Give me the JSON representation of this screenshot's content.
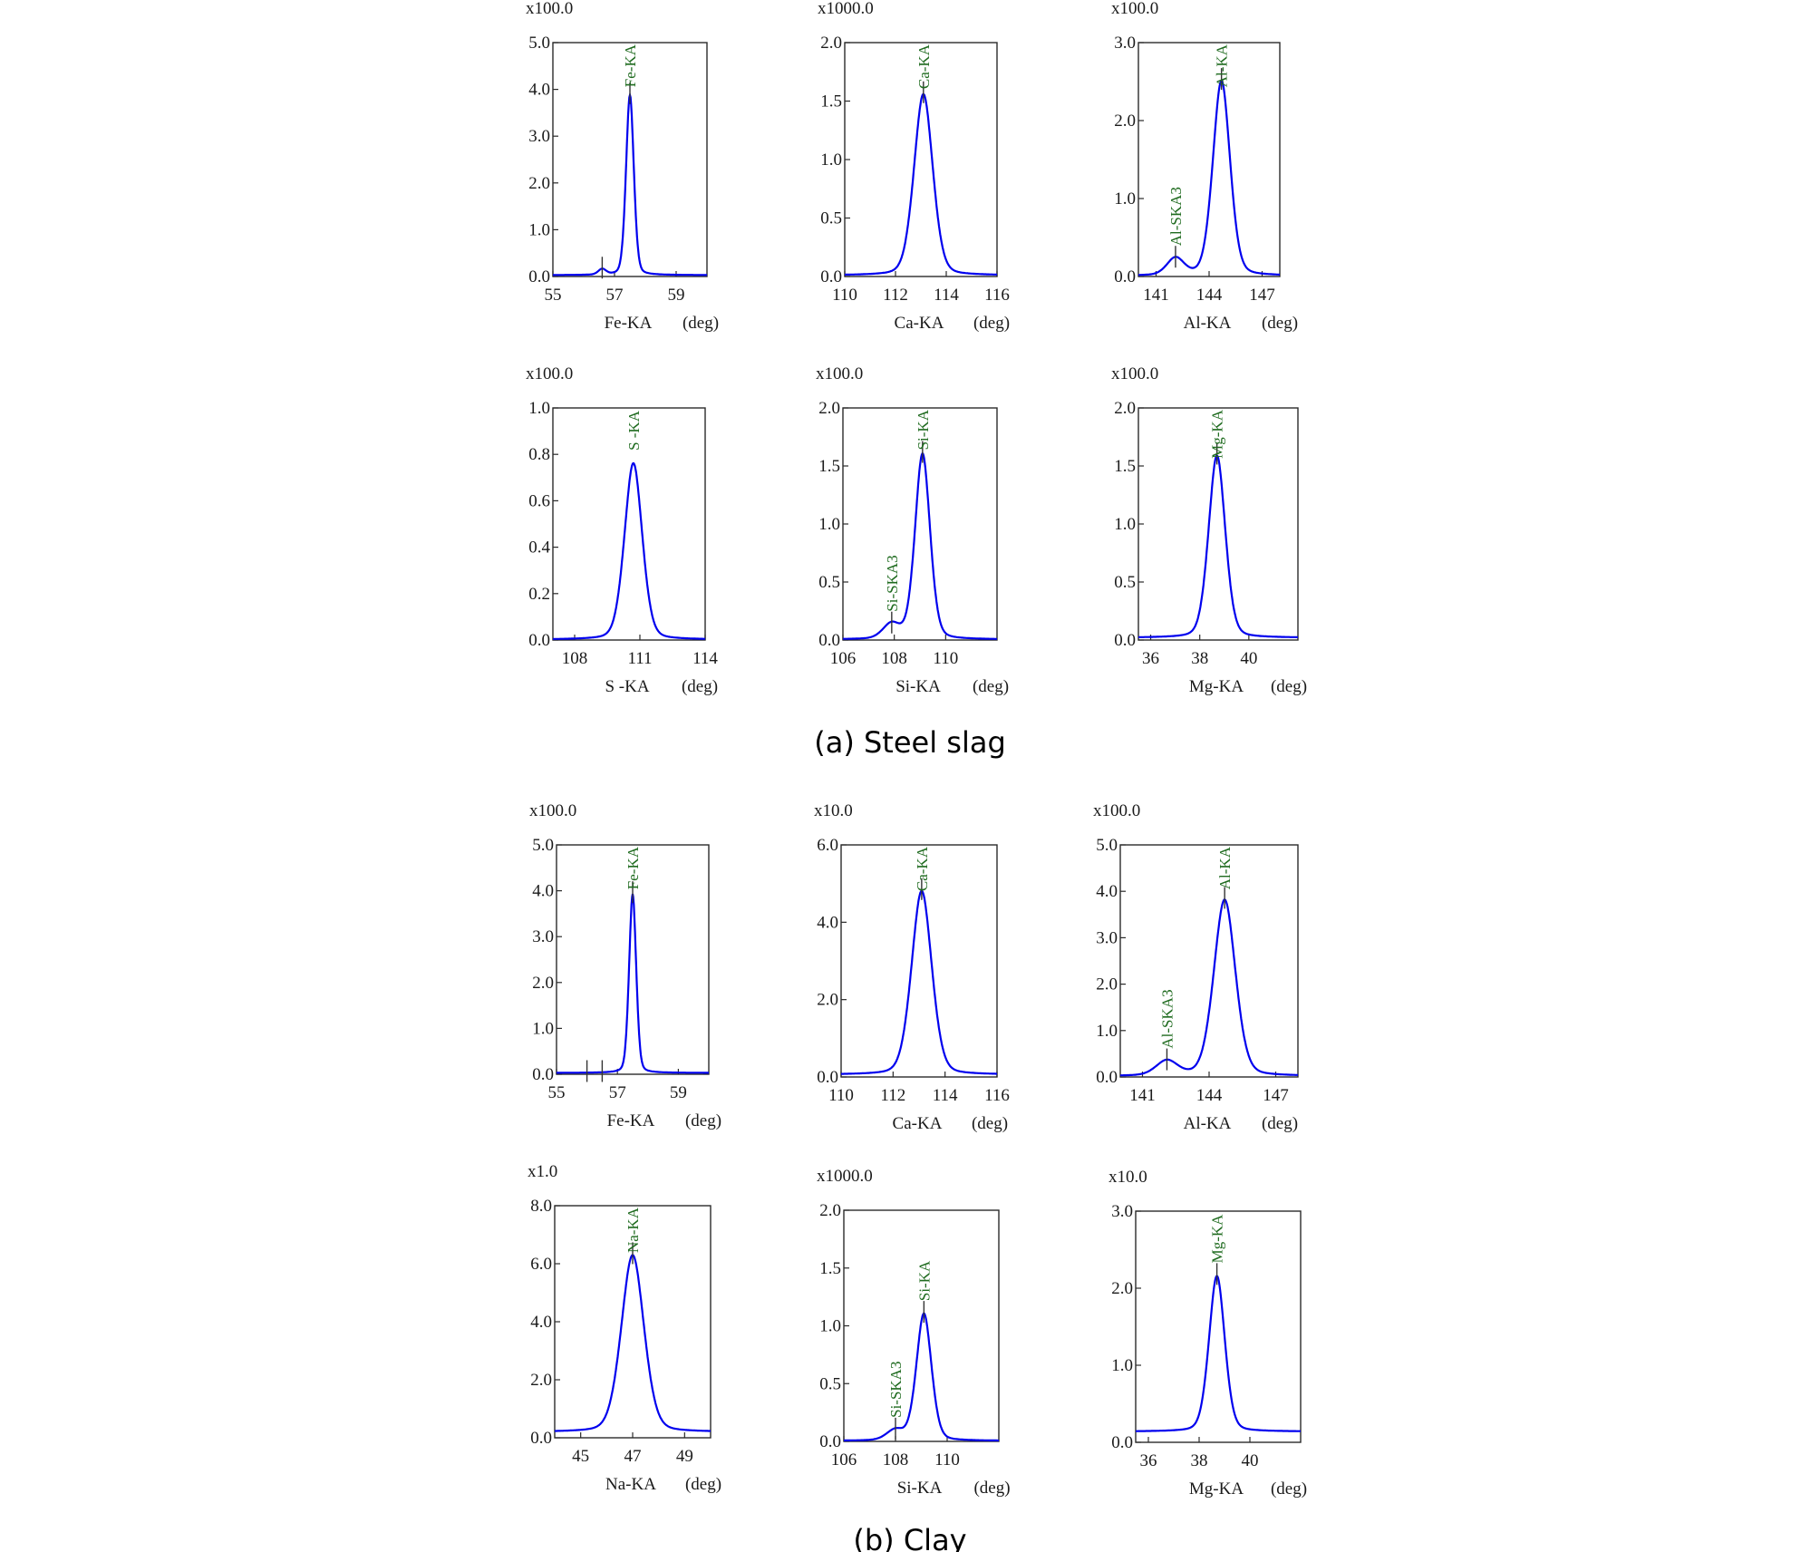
{
  "colors": {
    "curve": "#0000ee",
    "peak_label": "#1f6b1f",
    "axis": "#2a2a2a"
  },
  "captions": {
    "a": "(a)  Steel  slag",
    "b": "(b)  Clay"
  },
  "chart_data": [
    {
      "type": "line",
      "group": "a",
      "scale": "x100.0",
      "xlabel": "Fe-KA",
      "unit": "(deg)",
      "xlim": [
        55,
        60
      ],
      "xticks": [
        55,
        57,
        59
      ],
      "ylim": [
        0,
        5
      ],
      "yticks": [
        "0.0",
        "1.0",
        "2.0",
        "3.0",
        "4.0",
        "5.0"
      ],
      "baseline": 0.03,
      "peaks": [
        {
          "label": "Fe-KA",
          "x": 57.5,
          "height": 3.85,
          "width": 0.13,
          "marker": true
        },
        {
          "label": "",
          "x": 56.6,
          "height": 0.12,
          "width": 0.13,
          "marker": true
        }
      ]
    },
    {
      "type": "line",
      "group": "a",
      "scale": "x1000.0",
      "xlabel": "Ca-KA",
      "unit": "(deg)",
      "xlim": [
        110,
        116
      ],
      "xticks": [
        110,
        112,
        114,
        116
      ],
      "ylim": [
        0,
        2
      ],
      "yticks": [
        "0.0",
        "0.5",
        "1.0",
        "1.5",
        "2.0"
      ],
      "baseline": 0.01,
      "peaks": [
        {
          "label": "Ca-KA",
          "x": 113.1,
          "height": 1.55,
          "width": 0.38,
          "marker": true
        }
      ]
    },
    {
      "type": "line",
      "group": "a",
      "scale": "x100.0",
      "xlabel": "Al-KA",
      "unit": "(deg)",
      "xlim": [
        140,
        148
      ],
      "xticks": [
        141,
        144,
        147
      ],
      "ylim": [
        0,
        3
      ],
      "yticks": [
        "0.0",
        "1.0",
        "2.0",
        "3.0"
      ],
      "baseline": 0.01,
      "peaks": [
        {
          "label": "Al-KA",
          "x": 144.7,
          "height": 2.5,
          "width": 0.5,
          "marker": true
        },
        {
          "label": "Al-SKA3",
          "x": 142.1,
          "height": 0.22,
          "width": 0.5,
          "marker": true
        }
      ]
    },
    {
      "type": "line",
      "group": "a",
      "scale": "x100.0",
      "xlabel": "S -KA",
      "unit": "(deg)",
      "xlim": [
        107,
        114
      ],
      "xticks": [
        108,
        111,
        114
      ],
      "ylim": [
        0,
        1
      ],
      "yticks": [
        "0.0",
        "0.2",
        "0.4",
        "0.6",
        "0.8",
        "1.0"
      ],
      "baseline": 0.002,
      "peaks": [
        {
          "label": "S -KA",
          "x": 110.7,
          "height": 0.76,
          "width": 0.42,
          "marker": false
        }
      ]
    },
    {
      "type": "line",
      "group": "a",
      "scale": "x100.0",
      "xlabel": "Si-KA",
      "unit": "(deg)",
      "xlim": [
        106,
        112
      ],
      "xticks": [
        106,
        108,
        110
      ],
      "ylim": [
        0,
        2
      ],
      "yticks": [
        "0.0",
        "0.5",
        "1.0",
        "1.5",
        "2.0"
      ],
      "baseline": 0.005,
      "peaks": [
        {
          "label": "Si-KA",
          "x": 109.1,
          "height": 1.6,
          "width": 0.3,
          "marker": true
        },
        {
          "label": "Si-SKA3",
          "x": 107.9,
          "height": 0.13,
          "width": 0.35,
          "marker": true
        }
      ]
    },
    {
      "type": "line",
      "group": "a",
      "scale": "x100.0",
      "xlabel": "Mg-KA",
      "unit": "(deg)",
      "xlim": [
        35.5,
        42
      ],
      "xticks": [
        36,
        38,
        40
      ],
      "ylim": [
        0,
        2
      ],
      "yticks": [
        "0.0",
        "0.5",
        "1.0",
        "1.5",
        "2.0"
      ],
      "baseline": 0.02,
      "peaks": [
        {
          "label": "Mg-KA",
          "x": 38.7,
          "height": 1.57,
          "width": 0.35,
          "marker": true
        }
      ]
    },
    {
      "type": "line",
      "group": "b",
      "scale": "x100.0",
      "xlabel": "Fe-KA",
      "unit": "(deg)",
      "xlim": [
        55,
        60
      ],
      "xticks": [
        55,
        57,
        59
      ],
      "ylim": [
        0,
        5
      ],
      "yticks": [
        "0.0",
        "1.0",
        "2.0",
        "3.0",
        "4.0",
        "5.0"
      ],
      "baseline": 0.03,
      "peaks": [
        {
          "label": "Fe-KA",
          "x": 57.5,
          "height": 3.9,
          "width": 0.12,
          "marker": true
        },
        {
          "label": "",
          "x": 56.0,
          "height": 0.0,
          "width": 0.1,
          "marker": true
        },
        {
          "label": "",
          "x": 56.5,
          "height": 0.0,
          "width": 0.1,
          "marker": true
        }
      ]
    },
    {
      "type": "line",
      "group": "b",
      "scale": "x10.0",
      "xlabel": "Ca-KA",
      "unit": "(deg)",
      "xlim": [
        110,
        116
      ],
      "xticks": [
        110,
        112,
        114,
        116
      ],
      "ylim": [
        0,
        6
      ],
      "yticks": [
        "0.0",
        "2.0",
        "4.0",
        "6.0"
      ],
      "baseline": 0.06,
      "peaks": [
        {
          "label": "Ca-KA",
          "x": 113.1,
          "height": 4.75,
          "width": 0.4,
          "marker": true
        }
      ]
    },
    {
      "type": "line",
      "group": "b",
      "scale": "x100.0",
      "xlabel": "Al-KA",
      "unit": "(deg)",
      "xlim": [
        140,
        148
      ],
      "xticks": [
        141,
        144,
        147
      ],
      "ylim": [
        0,
        5
      ],
      "yticks": [
        "0.0",
        "1.0",
        "2.0",
        "3.0",
        "4.0",
        "5.0"
      ],
      "baseline": 0.02,
      "peaks": [
        {
          "label": "Al-KA",
          "x": 144.7,
          "height": 3.8,
          "width": 0.5,
          "marker": true
        },
        {
          "label": "Al-SKA3",
          "x": 142.1,
          "height": 0.32,
          "width": 0.5,
          "marker": true
        }
      ]
    },
    {
      "type": "line",
      "group": "b",
      "scale": "x1.0",
      "xlabel": "Na-KA",
      "unit": "(deg)",
      "xlim": [
        44,
        50
      ],
      "xticks": [
        45,
        47,
        49
      ],
      "ylim": [
        0,
        8
      ],
      "yticks": [
        "0.0",
        "2.0",
        "4.0",
        "6.0",
        "8.0"
      ],
      "baseline": 0.2,
      "peaks": [
        {
          "label": "Na-KA",
          "x": 47.0,
          "height": 6.1,
          "width": 0.45,
          "marker": true
        }
      ]
    },
    {
      "type": "line",
      "group": "b",
      "scale": "x1000.0",
      "xlabel": "Si-KA",
      "unit": "(deg)",
      "xlim": [
        106,
        112
      ],
      "xticks": [
        106,
        108,
        110
      ],
      "ylim": [
        0,
        2
      ],
      "yticks": [
        "0.0",
        "0.5",
        "1.0",
        "1.5",
        "2.0"
      ],
      "baseline": 0.005,
      "peaks": [
        {
          "label": "Si-KA",
          "x": 109.1,
          "height": 1.1,
          "width": 0.3,
          "marker": true
        },
        {
          "label": "Si-SKA3",
          "x": 108.0,
          "height": 0.09,
          "width": 0.35,
          "marker": true
        }
      ]
    },
    {
      "type": "line",
      "group": "b",
      "scale": "x10.0",
      "xlabel": "Mg-KA",
      "unit": "(deg)",
      "xlim": [
        35.5,
        42
      ],
      "xticks": [
        36,
        38,
        40
      ],
      "ylim": [
        0,
        3
      ],
      "yticks": [
        "0.0",
        "1.0",
        "2.0",
        "3.0"
      ],
      "baseline": 0.14,
      "peaks": [
        {
          "label": "Mg-KA",
          "x": 38.7,
          "height": 2.02,
          "width": 0.32,
          "marker": true
        }
      ]
    }
  ]
}
